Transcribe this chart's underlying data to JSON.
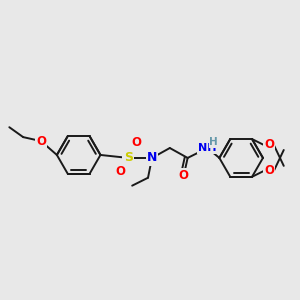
{
  "bg_color": "#e8e8e8",
  "bond_color": "#1a1a1a",
  "atom_colors": {
    "O": "#ff0000",
    "N": "#0000ee",
    "S": "#cccc00",
    "H": "#6699aa",
    "C": "#1a1a1a"
  },
  "figsize": [
    3.0,
    3.0
  ],
  "dpi": 100
}
